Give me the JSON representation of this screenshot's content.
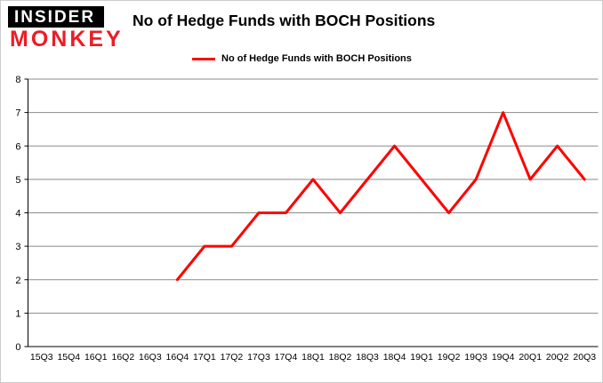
{
  "logo": {
    "top": "INSIDER",
    "bottom": "MONKEY"
  },
  "title": "No of Hedge Funds with BOCH Positions",
  "legend": {
    "label": "No of Hedge Funds with BOCH Positions"
  },
  "chart_data": {
    "type": "line",
    "title": "No of Hedge Funds with BOCH Positions",
    "categories": [
      "15Q3",
      "15Q4",
      "16Q1",
      "16Q2",
      "16Q3",
      "16Q4",
      "17Q1",
      "17Q2",
      "17Q3",
      "17Q4",
      "18Q1",
      "18Q2",
      "18Q3",
      "18Q4",
      "19Q1",
      "19Q2",
      "19Q3",
      "19Q4",
      "20Q1",
      "20Q2",
      "20Q3"
    ],
    "series": [
      {
        "name": "No of Hedge Funds with BOCH Positions",
        "values": [
          null,
          null,
          null,
          null,
          null,
          2,
          3,
          3,
          4,
          4,
          5,
          4,
          5,
          6,
          5,
          4,
          5,
          7,
          5,
          6,
          5
        ]
      }
    ],
    "xlabel": "",
    "ylabel": "",
    "ylim": [
      0,
      8
    ],
    "ytick_step": 1,
    "grid": true,
    "legend_position": "top",
    "line_color": "#ff0000",
    "axis_color": "#000000",
    "grid_color": "#8a8a8a",
    "label_color": "#000000"
  }
}
